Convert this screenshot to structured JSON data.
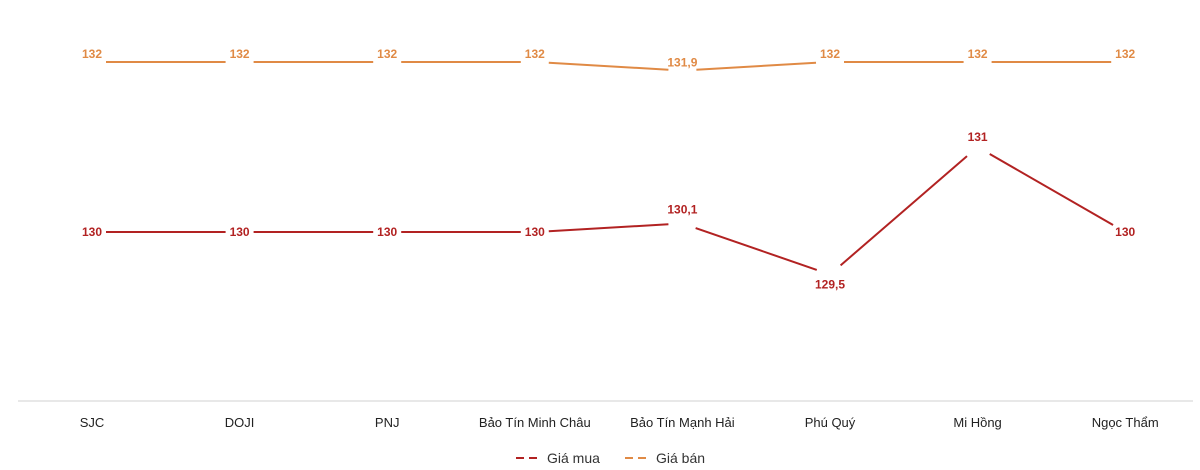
{
  "colors": {
    "buy": "#B22222",
    "sell": "#E08A45",
    "axis": "#D0D0D0"
  },
  "chart_data": {
    "type": "line",
    "categories": [
      "SJC",
      "DOJI",
      "PNJ",
      "Bảo Tín Minh Châu",
      "Bảo Tín Mạnh Hải",
      "Phú Quý",
      "Mi Hồng",
      "Ngọc Thẩm"
    ],
    "series": [
      {
        "name": "Giá mua",
        "values": [
          130,
          130,
          130,
          130,
          130.1,
          129.5,
          131,
          130
        ],
        "labels": [
          "130",
          "130",
          "130",
          "130",
          "130,1",
          "129,5",
          "131",
          "130"
        ]
      },
      {
        "name": "Giá bán",
        "values": [
          132,
          132,
          132,
          132,
          131.9,
          132,
          132,
          132
        ],
        "labels": [
          "132",
          "132",
          "132",
          "132",
          "131,9",
          "132",
          "132",
          "132"
        ]
      }
    ],
    "legend_position": "bottom",
    "grid": false
  }
}
